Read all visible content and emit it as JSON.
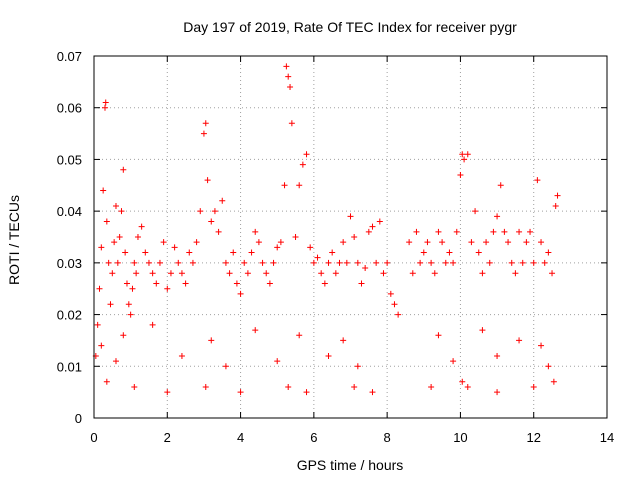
{
  "chart_data": {
    "type": "scatter",
    "title": "Day 197 of 2019, Rate Of TEC Index for receiver pygr",
    "xlabel": "GPS time / hours",
    "ylabel": "ROTI / TECUs",
    "xlim": [
      0,
      14
    ],
    "ylim": [
      0,
      0.07
    ],
    "xticks": [
      0,
      2,
      4,
      6,
      8,
      10,
      12,
      14
    ],
    "xtick_labels": [
      "0",
      "2",
      "4",
      "6",
      "8",
      "10",
      "12",
      "14"
    ],
    "yticks": [
      0,
      0.01,
      0.02,
      0.03,
      0.04,
      0.05,
      0.06,
      0.07
    ],
    "ytick_labels": [
      "0",
      "0.01",
      "0.02",
      "0.03",
      "0.04",
      "0.05",
      "0.06",
      "0.07"
    ],
    "grid": true,
    "marker": "+",
    "color": "#ff0000",
    "series": [
      {
        "name": "ROTI",
        "x": [
          0.05,
          0.1,
          0.15,
          0.2,
          0.25,
          0.3,
          0.32,
          0.35,
          0.4,
          0.45,
          0.5,
          0.55,
          0.6,
          0.65,
          0.7,
          0.75,
          0.8,
          0.85,
          0.9,
          0.95,
          1.0,
          1.05,
          1.1,
          1.15,
          1.2,
          1.3,
          1.4,
          1.5,
          1.6,
          1.7,
          1.8,
          1.9,
          2.0,
          2.1,
          2.2,
          2.3,
          2.4,
          2.5,
          2.6,
          2.7,
          2.8,
          2.9,
          3.0,
          3.05,
          3.1,
          3.2,
          3.3,
          3.4,
          3.5,
          3.6,
          3.7,
          3.8,
          3.9,
          4.0,
          4.1,
          4.2,
          4.3,
          4.4,
          4.5,
          4.6,
          4.7,
          4.8,
          4.9,
          5.0,
          5.1,
          5.2,
          5.25,
          5.3,
          5.35,
          5.4,
          5.5,
          5.6,
          5.7,
          5.8,
          5.9,
          6.0,
          6.1,
          6.2,
          6.3,
          6.4,
          6.5,
          6.6,
          6.7,
          6.8,
          6.9,
          7.0,
          7.1,
          7.2,
          7.3,
          7.4,
          7.5,
          7.6,
          7.7,
          7.8,
          7.9,
          8.0,
          8.1,
          8.2,
          8.3,
          8.6,
          8.7,
          8.8,
          8.9,
          9.0,
          9.1,
          9.2,
          9.3,
          9.4,
          9.5,
          9.6,
          9.7,
          9.8,
          9.9,
          10.0,
          10.05,
          10.1,
          10.2,
          10.3,
          10.4,
          10.5,
          10.6,
          10.7,
          10.8,
          10.9,
          11.0,
          11.1,
          11.2,
          11.3,
          11.4,
          11.5,
          11.6,
          11.7,
          11.8,
          11.9,
          12.0,
          12.1,
          12.2,
          12.3,
          12.4,
          12.5,
          12.6,
          12.65,
          0.2,
          0.8,
          1.6,
          3.2,
          4.4,
          5.6,
          6.8,
          9.4,
          10.6,
          11.6,
          12.2,
          0.6,
          2.4,
          3.6,
          5.0,
          6.4,
          7.2,
          9.8,
          11.0,
          12.4,
          0.35,
          1.1,
          2.0,
          3.05,
          4.0,
          5.3,
          5.8,
          7.1,
          7.6,
          9.2,
          10.05,
          10.2,
          11.0,
          12.0,
          12.55
        ],
        "y": [
          0.012,
          0.018,
          0.025,
          0.033,
          0.044,
          0.06,
          0.061,
          0.038,
          0.03,
          0.022,
          0.028,
          0.034,
          0.041,
          0.03,
          0.035,
          0.04,
          0.048,
          0.032,
          0.026,
          0.022,
          0.02,
          0.025,
          0.03,
          0.028,
          0.035,
          0.037,
          0.032,
          0.03,
          0.028,
          0.026,
          0.03,
          0.034,
          0.025,
          0.028,
          0.033,
          0.03,
          0.028,
          0.026,
          0.032,
          0.03,
          0.034,
          0.04,
          0.055,
          0.057,
          0.046,
          0.038,
          0.04,
          0.036,
          0.042,
          0.03,
          0.028,
          0.032,
          0.026,
          0.024,
          0.03,
          0.028,
          0.032,
          0.036,
          0.034,
          0.03,
          0.028,
          0.026,
          0.03,
          0.033,
          0.034,
          0.045,
          0.068,
          0.066,
          0.064,
          0.057,
          0.035,
          0.045,
          0.049,
          0.051,
          0.033,
          0.03,
          0.031,
          0.028,
          0.026,
          0.03,
          0.032,
          0.028,
          0.03,
          0.034,
          0.03,
          0.039,
          0.035,
          0.03,
          0.026,
          0.029,
          0.036,
          0.037,
          0.03,
          0.038,
          0.028,
          0.03,
          0.024,
          0.022,
          0.02,
          0.034,
          0.028,
          0.036,
          0.03,
          0.032,
          0.034,
          0.03,
          0.028,
          0.036,
          0.034,
          0.03,
          0.032,
          0.03,
          0.036,
          0.047,
          0.051,
          0.05,
          0.051,
          0.034,
          0.04,
          0.032,
          0.028,
          0.034,
          0.03,
          0.036,
          0.039,
          0.045,
          0.036,
          0.034,
          0.03,
          0.028,
          0.036,
          0.03,
          0.034,
          0.036,
          0.03,
          0.046,
          0.034,
          0.03,
          0.032,
          0.028,
          0.041,
          0.043,
          0.014,
          0.016,
          0.018,
          0.015,
          0.017,
          0.016,
          0.015,
          0.016,
          0.017,
          0.015,
          0.014,
          0.011,
          0.012,
          0.01,
          0.011,
          0.012,
          0.01,
          0.011,
          0.012,
          0.01,
          0.007,
          0.006,
          0.005,
          0.006,
          0.005,
          0.006,
          0.005,
          0.006,
          0.005,
          0.006,
          0.007,
          0.006,
          0.005,
          0.006,
          0.007
        ]
      }
    ]
  }
}
